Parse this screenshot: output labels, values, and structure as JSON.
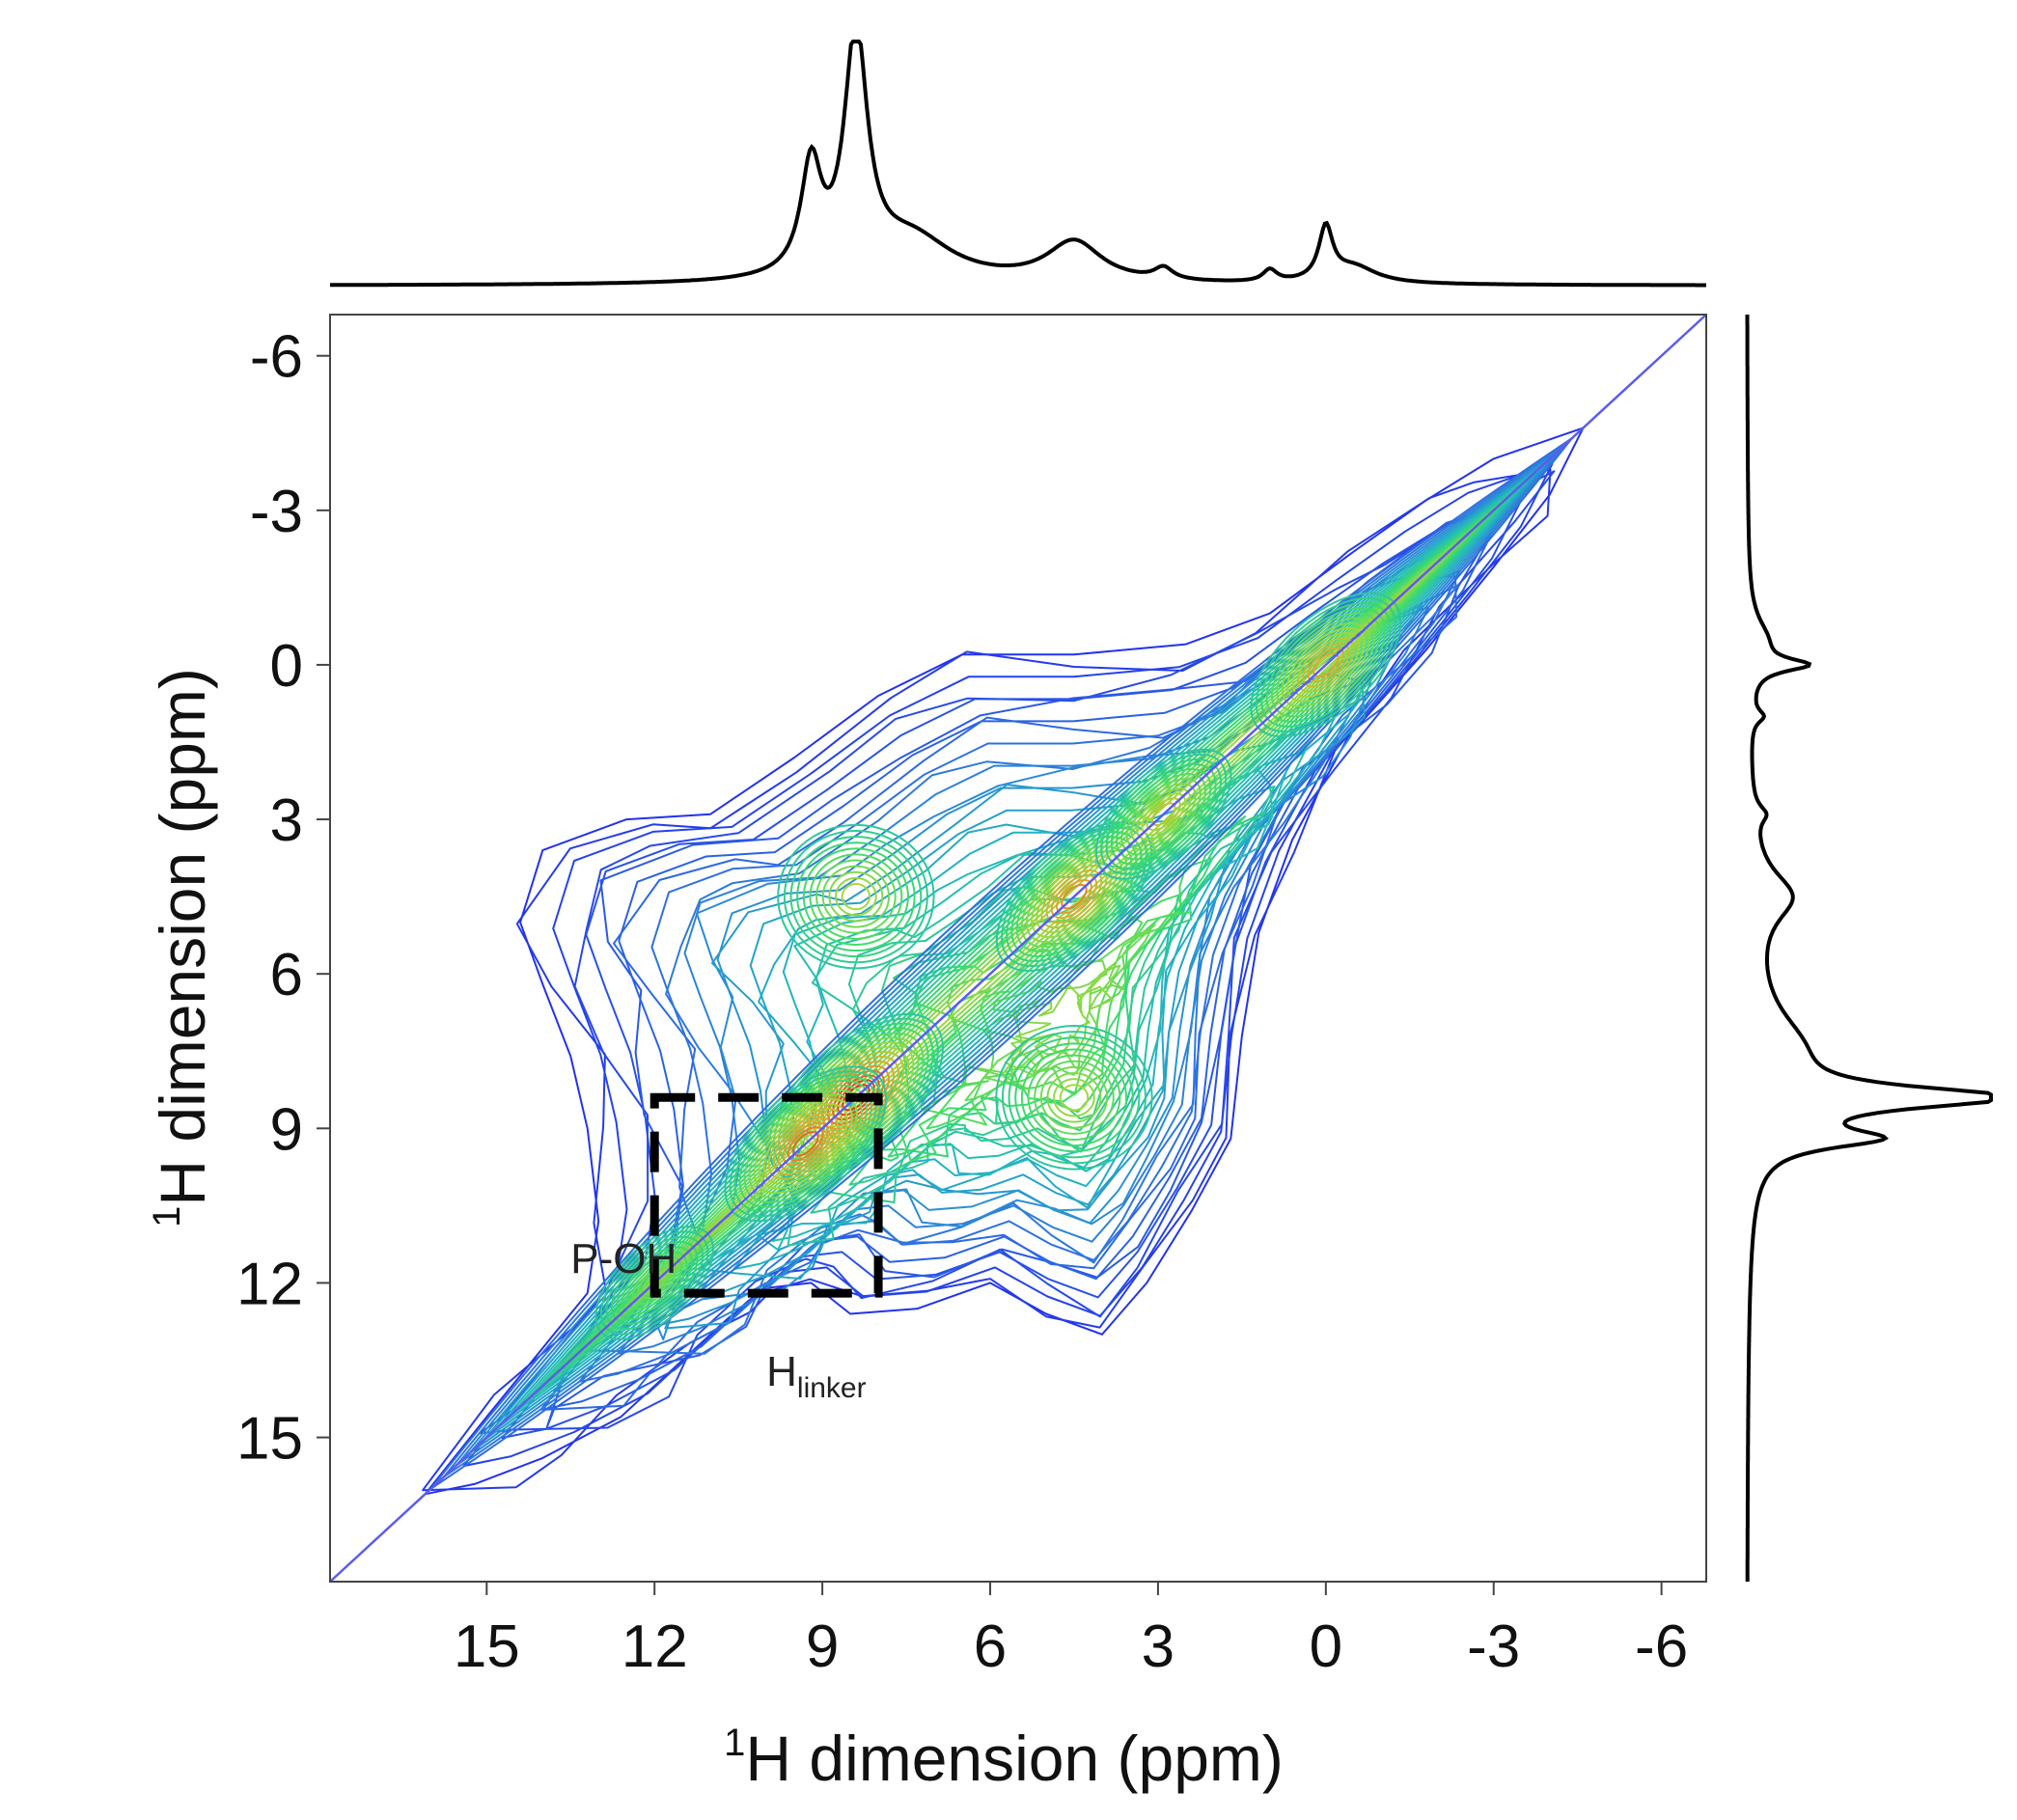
{
  "chart_data": {
    "type": "contour",
    "title": "",
    "xlabel": {
      "base": "H dimension (ppm)",
      "superscript": "1"
    },
    "ylabel": {
      "base": "H dimension (ppm)",
      "superscript": "1"
    },
    "xlim": [
      17.8,
      -6.8
    ],
    "ylim": [
      17.8,
      -6.8
    ],
    "x_ticks": [
      15,
      12,
      9,
      6,
      3,
      0,
      -3,
      -6
    ],
    "y_ticks": [
      -6,
      -3,
      0,
      3,
      6,
      9,
      12,
      15
    ],
    "diagonal": {
      "from": 17.8,
      "to": -6.8,
      "color": "#5a5cf0"
    },
    "projection_1d": [
      {
        "ppm": 9.2,
        "height": 0.45,
        "width": 0.22
      },
      {
        "ppm": 8.4,
        "height": 1.0,
        "width": 0.25
      },
      {
        "ppm": 7.4,
        "height": 0.18,
        "width": 0.9
      },
      {
        "ppm": 4.5,
        "height": 0.17,
        "width": 0.6
      },
      {
        "ppm": 2.9,
        "height": 0.05,
        "width": 0.2
      },
      {
        "ppm": 1.0,
        "height": 0.05,
        "width": 0.15
      },
      {
        "ppm": 0.0,
        "height": 0.22,
        "width": 0.15
      },
      {
        "ppm": -0.5,
        "height": 0.07,
        "width": 0.5
      }
    ],
    "contour_peaks": [
      {
        "x": 8.4,
        "y": 8.4,
        "intensity": 1.0
      },
      {
        "x": 9.3,
        "y": 9.3,
        "intensity": 0.85
      },
      {
        "x": 4.5,
        "y": 4.5,
        "intensity": 0.78
      },
      {
        "x": 0.0,
        "y": 0.0,
        "intensity": 0.72
      },
      {
        "x": 2.9,
        "y": 2.9,
        "intensity": 0.55
      },
      {
        "x": 8.4,
        "y": 4.5,
        "intensity": 0.45
      },
      {
        "x": 4.5,
        "y": 8.4,
        "intensity": 0.45
      },
      {
        "x": 12.0,
        "y": 12.0,
        "intensity": 0.35
      }
    ],
    "annotations": [
      {
        "text": "P-OH",
        "x": 13.5,
        "y": 11.8
      },
      {
        "base": "H",
        "subscript": "linker",
        "x": 10.0,
        "y": 14.0
      }
    ],
    "highlight_box": {
      "x_range": [
        12.0,
        8.0
      ],
      "y_range": [
        8.4,
        12.2
      ],
      "style": "dashed",
      "color": "#000000"
    },
    "colormap": [
      "#2233ee",
      "#2f74e0",
      "#22b8c0",
      "#3ddc6a",
      "#a7d83a",
      "#e8a030",
      "#ee2a1a"
    ]
  }
}
